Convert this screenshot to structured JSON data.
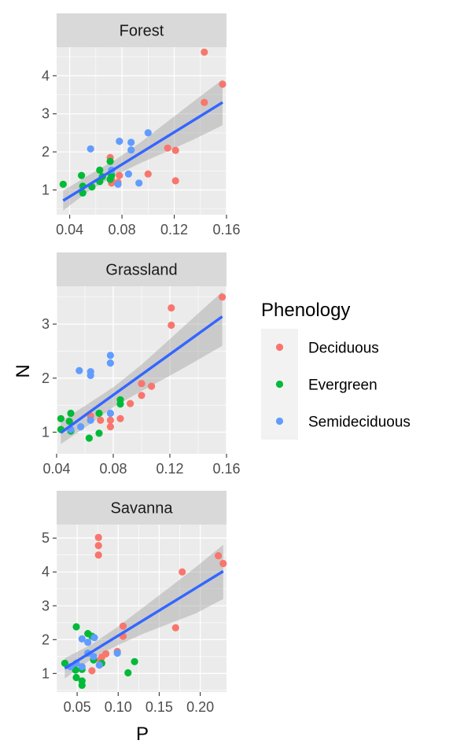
{
  "chart_data": {
    "type": "scatter",
    "facet_by": "Biome",
    "xlabel": "P",
    "ylabel": "N",
    "legend": {
      "title": "Phenology",
      "position": "right",
      "entries": [
        {
          "name": "Deciduous",
          "color": "#F8766D"
        },
        {
          "name": "Evergreen",
          "color": "#00BA38"
        },
        {
          "name": "Semideciduous",
          "color": "#619CFF"
        }
      ]
    },
    "trend_line_color": "#3366FF",
    "panel_background": "#EBEBEB",
    "strip_background": "#D9D9D9",
    "panels": [
      {
        "title": "Forest",
        "xlim": [
          0.03,
          0.16
        ],
        "ylim": [
          0.35,
          4.75
        ],
        "xticks": [
          0.04,
          0.08,
          0.12,
          0.16
        ],
        "xtick_labels": [
          "0.04",
          "0.08",
          "0.12",
          "0.16"
        ],
        "yticks": [
          1,
          2,
          3,
          4
        ],
        "ytick_labels": [
          "1",
          "2",
          "3",
          "4"
        ],
        "trend": {
          "x": [
            0.035,
            0.157
          ],
          "y": [
            0.72,
            3.3
          ]
        },
        "band": {
          "x": [
            0.035,
            0.055,
            0.075,
            0.095,
            0.115,
            0.135,
            0.157
          ],
          "upper": [
            0.98,
            1.4,
            1.79,
            2.27,
            2.8,
            3.33,
            3.9
          ],
          "lower": [
            0.46,
            0.98,
            1.39,
            1.72,
            2.02,
            2.33,
            2.7
          ]
        },
        "series": [
          {
            "name": "Deciduous",
            "points": [
              [
                0.143,
                4.62
              ],
              [
                0.157,
                3.78
              ],
              [
                0.143,
                3.3
              ],
              [
                0.115,
                2.1
              ],
              [
                0.121,
                2.04
              ],
              [
                0.1,
                1.42
              ],
              [
                0.121,
                1.24
              ],
              [
                0.078,
                1.38
              ],
              [
                0.072,
                1.28
              ],
              [
                0.077,
                1.2
              ],
              [
                0.071,
                1.85
              ],
              [
                0.072,
                1.18
              ]
            ]
          },
          {
            "name": "Evergreen",
            "points": [
              [
                0.035,
                1.15
              ],
              [
                0.049,
                1.38
              ],
              [
                0.05,
                1.1
              ],
              [
                0.05,
                0.92
              ],
              [
                0.057,
                1.08
              ],
              [
                0.063,
                1.52
              ],
              [
                0.063,
                1.22
              ],
              [
                0.065,
                1.35
              ],
              [
                0.071,
                1.75
              ],
              [
                0.072,
                1.38
              ],
              [
                0.071,
                1.28
              ]
            ]
          },
          {
            "name": "Semideciduous",
            "points": [
              [
                0.056,
                2.08
              ],
              [
                0.078,
                2.28
              ],
              [
                0.087,
                2.25
              ],
              [
                0.087,
                2.05
              ],
              [
                0.1,
                2.5
              ],
              [
                0.085,
                1.42
              ],
              [
                0.093,
                1.18
              ],
              [
                0.077,
                1.15
              ],
              [
                0.072,
                1.52
              ]
            ]
          }
        ]
      },
      {
        "title": "Grassland",
        "xlim": [
          0.04,
          0.16
        ],
        "ylim": [
          0.6,
          3.7
        ],
        "xticks": [
          0.04,
          0.08,
          0.12,
          0.16
        ],
        "xtick_labels": [
          "0.04",
          "0.08",
          "0.12",
          "0.16"
        ],
        "yticks": [
          1,
          2,
          3
        ],
        "ytick_labels": [
          "1",
          "2",
          "3"
        ],
        "trend": {
          "x": [
            0.043,
            0.157
          ],
          "y": [
            0.99,
            3.14
          ]
        },
        "band": {
          "x": [
            0.043,
            0.062,
            0.081,
            0.1,
            0.119,
            0.138,
            0.157
          ],
          "upper": [
            1.2,
            1.52,
            1.85,
            2.25,
            2.7,
            3.15,
            3.6
          ],
          "lower": [
            0.78,
            1.12,
            1.48,
            1.76,
            2.03,
            2.31,
            2.6
          ]
        },
        "series": [
          {
            "name": "Deciduous",
            "points": [
              [
                0.157,
                3.5
              ],
              [
                0.121,
                3.3
              ],
              [
                0.121,
                2.98
              ],
              [
                0.1,
                1.9
              ],
              [
                0.107,
                1.85
              ],
              [
                0.1,
                1.68
              ],
              [
                0.092,
                1.53
              ],
              [
                0.085,
                1.25
              ],
              [
                0.078,
                1.1
              ],
              [
                0.078,
                1.22
              ],
              [
                0.071,
                1.22
              ],
              [
                0.064,
                1.3
              ]
            ]
          },
          {
            "name": "Evergreen",
            "points": [
              [
                0.043,
                1.25
              ],
              [
                0.05,
                1.35
              ],
              [
                0.049,
                1.2
              ],
              [
                0.043,
                1.05
              ],
              [
                0.05,
                1.02
              ],
              [
                0.063,
                0.89
              ],
              [
                0.07,
                0.98
              ],
              [
                0.07,
                1.35
              ],
              [
                0.085,
                1.52
              ],
              [
                0.085,
                1.6
              ]
            ]
          },
          {
            "name": "Semideciduous",
            "points": [
              [
                0.056,
                2.14
              ],
              [
                0.064,
                2.12
              ],
              [
                0.064,
                2.05
              ],
              [
                0.078,
                2.42
              ],
              [
                0.078,
                2.28
              ],
              [
                0.064,
                1.22
              ],
              [
                0.078,
                1.35
              ],
              [
                0.05,
                1.05
              ],
              [
                0.057,
                1.1
              ]
            ]
          }
        ]
      },
      {
        "title": "Savanna",
        "xlim": [
          0.025,
          0.232
        ],
        "ylim": [
          0.45,
          5.4
        ],
        "xticks": [
          0.05,
          0.1,
          0.15,
          0.2
        ],
        "xtick_labels": [
          "0.05",
          "0.10",
          "0.15",
          "0.20"
        ],
        "yticks": [
          1,
          2,
          3,
          4,
          5
        ],
        "ytick_labels": [
          "1",
          "2",
          "3",
          "4",
          "5"
        ],
        "trend": {
          "x": [
            0.035,
            0.228
          ],
          "y": [
            1.15,
            4.02
          ]
        },
        "band": {
          "x": [
            0.035,
            0.067,
            0.099,
            0.131,
            0.163,
            0.195,
            0.228
          ],
          "upper": [
            1.45,
            1.85,
            2.37,
            2.96,
            3.55,
            4.15,
            4.8
          ],
          "lower": [
            0.85,
            1.42,
            1.83,
            2.18,
            2.48,
            2.78,
            3.2
          ]
        },
        "series": [
          {
            "name": "Deciduous",
            "points": [
              [
                0.076,
                5.02
              ],
              [
                0.076,
                4.78
              ],
              [
                0.076,
                4.5
              ],
              [
                0.222,
                4.48
              ],
              [
                0.228,
                4.25
              ],
              [
                0.178,
                4.0
              ],
              [
                0.17,
                2.35
              ],
              [
                0.106,
                2.4
              ],
              [
                0.106,
                2.1
              ],
              [
                0.099,
                1.65
              ],
              [
                0.085,
                1.58
              ],
              [
                0.08,
                1.48
              ],
              [
                0.078,
                1.4
              ],
              [
                0.068,
                1.08
              ]
            ]
          },
          {
            "name": "Evergreen",
            "points": [
              [
                0.049,
                2.38
              ],
              [
                0.063,
                2.18
              ],
              [
                0.068,
                2.1
              ],
              [
                0.035,
                1.3
              ],
              [
                0.048,
                1.1
              ],
              [
                0.056,
                1.12
              ],
              [
                0.049,
                0.88
              ],
              [
                0.056,
                0.78
              ],
              [
                0.056,
                0.65
              ],
              [
                0.112,
                1.02
              ],
              [
                0.12,
                1.35
              ],
              [
                0.08,
                1.3
              ],
              [
                0.07,
                1.4
              ]
            ]
          },
          {
            "name": "Semideciduous",
            "points": [
              [
                0.056,
                2.02
              ],
              [
                0.071,
                2.06
              ],
              [
                0.063,
                1.92
              ],
              [
                0.063,
                1.6
              ],
              [
                0.07,
                1.5
              ],
              [
                0.077,
                1.25
              ],
              [
                0.049,
                1.3
              ],
              [
                0.042,
                1.2
              ],
              [
                0.056,
                1.2
              ],
              [
                0.099,
                1.6
              ]
            ]
          }
        ]
      }
    ]
  }
}
